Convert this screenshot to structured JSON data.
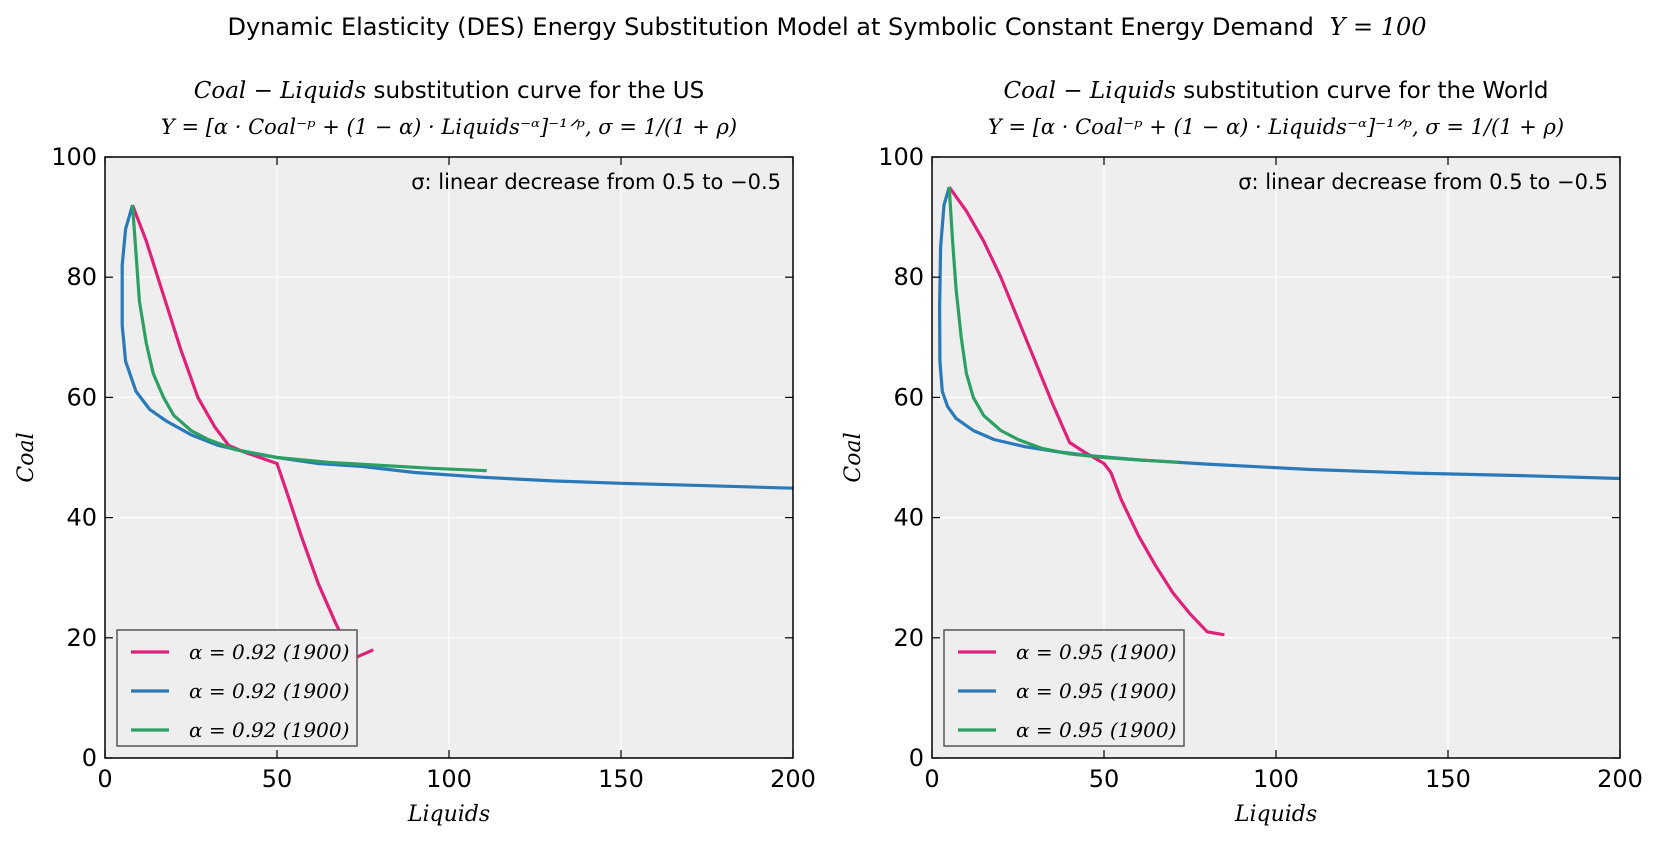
{
  "figure": {
    "suptitle_text": "Dynamic Elasticity (DES) Energy Substitution Model at Symbolic Constant Energy Demand",
    "suptitle_math": "Y = 100"
  },
  "chart_data": [
    {
      "type": "line",
      "title_math": "Coal − Liquids",
      "title_text": " substitution curve for the US",
      "subtitle": "Y = [α · Coal⁻ᵖ + (1 − α) · Liquids⁻ᵅ]⁻¹ᐟᵖ, σ = 1/(1 + ρ)",
      "annotation": "σ: linear decrease from 0.5 to −0.5",
      "xlabel": "Liquids",
      "ylabel": "Coal",
      "xlim": [
        0,
        200
      ],
      "ylim": [
        0,
        100
      ],
      "xticks": [
        0,
        50,
        100,
        150,
        200
      ],
      "yticks": [
        0,
        20,
        40,
        60,
        80,
        100
      ],
      "grid": true,
      "legend_position": "lower-left",
      "series": [
        {
          "name": "α = 0.92 (1900)",
          "color": "#e0217a",
          "x": [
            8,
            12,
            17,
            22,
            27,
            32,
            36,
            40,
            45,
            50,
            53,
            57,
            62,
            67,
            72,
            78
          ],
          "y": [
            92,
            86,
            77,
            68,
            60,
            55,
            52,
            51,
            50,
            49,
            44,
            37,
            29,
            22.5,
            16.5,
            18
          ]
        },
        {
          "name": "α = 0.92 (1900)",
          "color": "#2a7ab9",
          "x": [
            8,
            6,
            5,
            5,
            6,
            9,
            13,
            18,
            25,
            33,
            42,
            50,
            62,
            75,
            90,
            110,
            130,
            150,
            175,
            200
          ],
          "y": [
            92,
            88,
            82,
            72,
            66,
            61,
            58,
            56,
            53.8,
            52,
            50.8,
            50,
            49,
            48.5,
            47.5,
            46.7,
            46.1,
            45.7,
            45.3,
            44.9
          ]
        },
        {
          "name": "α = 0.92 (1900)",
          "color": "#2ca063",
          "x": [
            8,
            9,
            10,
            12,
            14,
            17,
            20,
            25,
            30,
            38,
            50,
            65,
            80,
            95,
            111
          ],
          "y": [
            92,
            84,
            76,
            69,
            64,
            60,
            57,
            54.5,
            53,
            51.3,
            50,
            49.2,
            48.7,
            48.2,
            47.8
          ]
        }
      ]
    },
    {
      "type": "line",
      "title_math": "Coal − Liquids",
      "title_text": " substitution curve for the World",
      "subtitle": "Y = [α · Coal⁻ᵖ + (1 − α) · Liquids⁻ᵅ]⁻¹ᐟᵖ, σ = 1/(1 + ρ)",
      "annotation": "σ: linear decrease from 0.5 to −0.5",
      "xlabel": "Liquids",
      "ylabel": "Coal",
      "xlim": [
        0,
        200
      ],
      "ylim": [
        0,
        100
      ],
      "xticks": [
        0,
        50,
        100,
        150,
        200
      ],
      "yticks": [
        0,
        20,
        40,
        60,
        80,
        100
      ],
      "grid": true,
      "legend_position": "lower-left",
      "series": [
        {
          "name": "α = 0.95 (1900)",
          "color": "#e0217a",
          "x": [
            5,
            10,
            15,
            20,
            25,
            30,
            35,
            40,
            44,
            47,
            50,
            52,
            55,
            60,
            65,
            70,
            75,
            80,
            85
          ],
          "y": [
            95,
            91,
            86,
            80,
            73,
            66,
            59,
            52.5,
            51,
            50,
            49,
            47.5,
            43,
            37,
            32,
            27.5,
            24,
            21,
            20.5
          ]
        },
        {
          "name": "α = 0.95 (1900)",
          "color": "#2a7ab9",
          "x": [
            5,
            3.5,
            2.5,
            2.2,
            2.3,
            3,
            4.5,
            7,
            12,
            18,
            27,
            36,
            46,
            60,
            80,
            110,
            140,
            170,
            200
          ],
          "y": [
            95,
            92,
            85,
            75,
            66,
            61,
            58.5,
            56.5,
            54.5,
            53,
            51.8,
            51,
            50.3,
            49.6,
            48.9,
            48,
            47.4,
            47,
            46.5
          ]
        },
        {
          "name": "α = 0.95 (1900)",
          "color": "#2ca063",
          "x": [
            5,
            6,
            7,
            8.5,
            10,
            12,
            15,
            20,
            25,
            32,
            40,
            50,
            60,
            72
          ],
          "y": [
            95,
            86,
            78,
            70,
            64,
            60,
            57,
            54.5,
            53,
            51.5,
            50.6,
            50,
            49.6,
            49.2
          ]
        }
      ]
    }
  ]
}
